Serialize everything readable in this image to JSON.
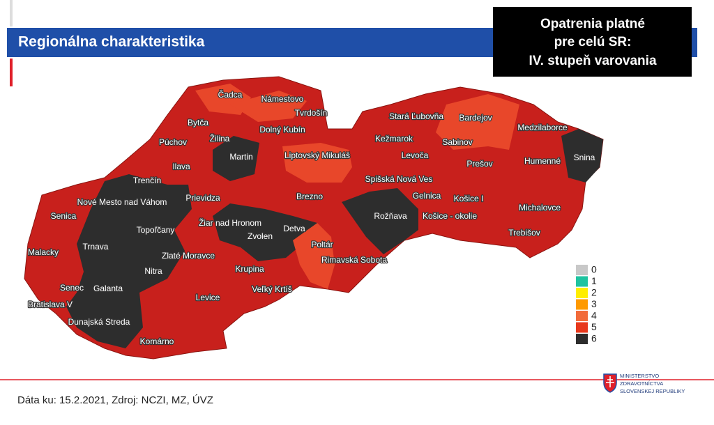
{
  "header": {
    "title": "Regionálna charakteristika"
  },
  "notice": {
    "lines": [
      "Opatrenia platné",
      "pre celú SR:",
      "IV. stupeň varovania"
    ]
  },
  "districts": [
    "Čadca",
    "Námestovo",
    "Tvrdošín",
    "Bytča",
    "Žilina",
    "Dolný Kubín",
    "Púchov",
    "Martin",
    "Liptovský Mikuláš",
    "Ilava",
    "Trenčín",
    "Prievidza",
    "Brezno",
    "Nové Mesto nad Váhom",
    "Senica",
    "Topoľčany",
    "Žiar nad Hronom",
    "Detva",
    "Malacky",
    "Trnava",
    "Zlaté Moravce",
    "Zvolen",
    "Poltár",
    "Rimavská Sobota",
    "Krupina",
    "Nitra",
    "Senec",
    "Galanta",
    "Veľký Krtíš",
    "Levice",
    "Bratislava V",
    "Dunajská Streda",
    "Komárno",
    "Stará Ľubovňa",
    "Bardejov",
    "Medzilaborce",
    "Kežmarok",
    "Sabinov",
    "Levoča",
    "Humenné",
    "Snina",
    "Prešov",
    "Spišská Nová Ves",
    "Gelnica",
    "Košice I",
    "Rožňava",
    "Košice - okolie",
    "Michalovce",
    "Trebišov"
  ],
  "legend": [
    {
      "label": 0,
      "color": "#c8c8c8"
    },
    {
      "label": 1,
      "color": "#1fc3a0"
    },
    {
      "label": 2,
      "color": "#ffee00"
    },
    {
      "label": 3,
      "color": "#ff9a00"
    },
    {
      "label": 4,
      "color": "#f26b3a"
    },
    {
      "label": 5,
      "color": "#e8381c"
    },
    {
      "label": 6,
      "color": "#2d2d2d"
    }
  ],
  "footer": {
    "source": "Dáta ku: 15.2.2021, Zdroj: NCZI, MZ, ÚVZ",
    "logo": [
      "MINISTERSTVO",
      "ZDRAVOTNÍCTVA",
      "SLOVENSKEJ REPUBLIKY"
    ]
  }
}
